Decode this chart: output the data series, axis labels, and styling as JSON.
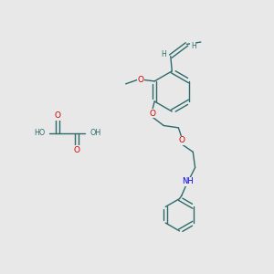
{
  "background_color": "#e8e8e8",
  "bond_color": "#2d6b6b",
  "oxygen_color": "#cc0000",
  "nitrogen_color": "#0000ee",
  "lw": 1.0,
  "figsize": [
    3.0,
    3.0
  ],
  "dpi": 100,
  "xlim": [
    0,
    10
  ],
  "ylim": [
    0,
    10
  ]
}
